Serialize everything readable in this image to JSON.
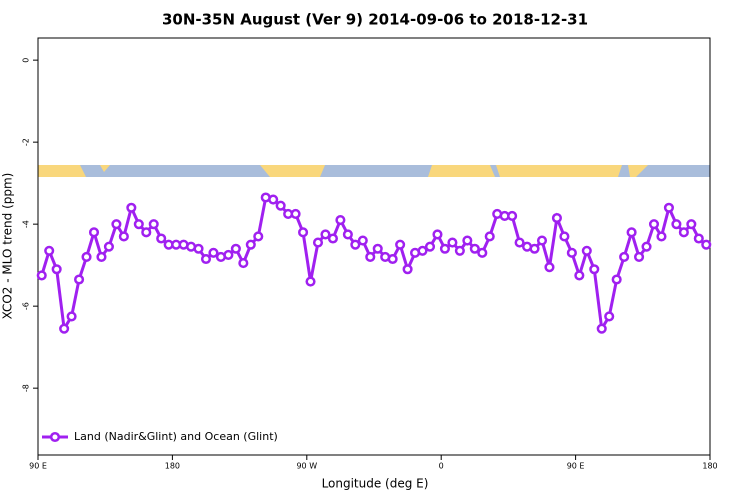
{
  "chart_data": {
    "type": "line",
    "title": "30N-35N August (Ver 9)   2014-09-06 to 2018-12-31",
    "x_label": "Longitude (deg E)",
    "y_label": "XCO2 - MLO trend (ppm)",
    "x": [
      92.5,
      97.5,
      102.5,
      107.5,
      112.5,
      117.5,
      122.5,
      127.5,
      132.5,
      137.5,
      142.5,
      147.5,
      152.5,
      157.5,
      162.5,
      167.5,
      172.5,
      177.5,
      182.5,
      187.5,
      192.5,
      197.5,
      202.5,
      207.5,
      212.5,
      217.5,
      222.5,
      227.5,
      232.5,
      237.5,
      242.5,
      247.5,
      252.5,
      257.5,
      262.5,
      267.5,
      272.5,
      277.5,
      282.5,
      287.5,
      292.5,
      297.5,
      302.5,
      307.5,
      312.5,
      317.5,
      322.5,
      327.5,
      332.5,
      337.5,
      342.5,
      347.5,
      352.5,
      357.5,
      362.5,
      367.5,
      372.5,
      377.5,
      382.5,
      387.5,
      392.5,
      397.5,
      402.5,
      407.5,
      412.5,
      417.5,
      422.5,
      427.5,
      432.5,
      437.5,
      442.5,
      447.5,
      452.5,
      457.5,
      462.5,
      467.5,
      472.5,
      477.5,
      482.5,
      487.5,
      492.5,
      497.5,
      502.5,
      507.5,
      512.5,
      517.5,
      522.5,
      527.5,
      532.5,
      537.5
    ],
    "series": [
      {
        "name": "Land (Nadir&Glint) and Ocean (Glint)",
        "color": "#a020f0",
        "values": [
          -5.25,
          -4.65,
          -5.1,
          -6.55,
          -6.25,
          -5.35,
          -4.8,
          -4.2,
          -4.8,
          -4.55,
          -4.0,
          -4.3,
          -3.6,
          -4.0,
          -4.2,
          -4.0,
          -4.35,
          -4.5,
          -4.5,
          -4.5,
          -4.55,
          -4.6,
          -4.85,
          -4.7,
          -4.8,
          -4.75,
          -4.6,
          -4.95,
          -4.5,
          -4.3,
          -3.35,
          -3.4,
          -3.55,
          -3.75,
          -3.75,
          -4.2,
          -5.4,
          -4.45,
          -4.25,
          -4.35,
          -3.9,
          -4.25,
          -4.5,
          -4.4,
          -4.8,
          -4.6,
          -4.8,
          -4.85,
          -4.5,
          -5.1,
          -4.7,
          -4.65,
          -4.55,
          -4.25,
          -4.6,
          -4.45,
          -4.65,
          -4.4,
          -4.6,
          -4.7,
          -4.3,
          -3.75,
          -3.8,
          -3.8,
          -4.45,
          -4.55,
          -4.6,
          -4.4,
          -5.05,
          -3.85,
          -4.3,
          -4.7,
          -5.25,
          -4.65,
          -5.1,
          -6.55,
          -6.25,
          -5.35,
          -4.8,
          -4.2,
          -4.8,
          -4.55,
          -4.0,
          -4.3,
          -3.6,
          -4.0,
          -4.2,
          -4.0,
          -4.35,
          -4.5
        ]
      }
    ],
    "xlim": [
      90,
      540
    ],
    "xticks": [
      {
        "value": 90,
        "label": "90 E"
      },
      180,
      {
        "value": 270,
        "label": "90 W"
      },
      {
        "value": 360,
        "label": "0"
      },
      {
        "value": 450,
        "label": "90 E"
      },
      {
        "value": 540,
        "label": "180"
      }
    ],
    "ylim": [
      -9.63,
      0.54
    ],
    "yticks": [
      0,
      -2,
      -4,
      -6,
      -8
    ],
    "legend": "bottom-left"
  }
}
